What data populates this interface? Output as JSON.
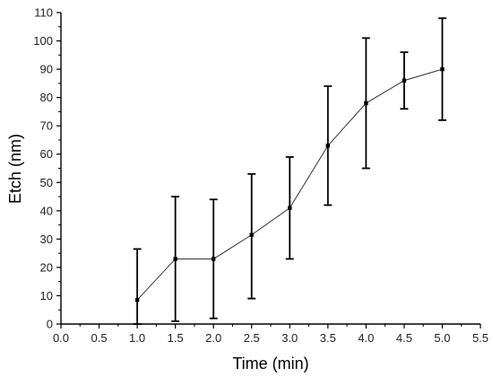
{
  "chart_data": {
    "type": "line",
    "title": "",
    "xlabel": "Time (min)",
    "ylabel": "Etch (nm)",
    "xlim": [
      0.0,
      5.5
    ],
    "ylim": [
      0,
      110
    ],
    "xticks": [
      "0.0",
      "0.5",
      "1.0",
      "1.5",
      "2.0",
      "2.5",
      "3.0",
      "3.5",
      "4.0",
      "4.5",
      "5.0",
      "5.5"
    ],
    "yticks": [
      "0",
      "10",
      "20",
      "30",
      "40",
      "50",
      "60",
      "70",
      "80",
      "90",
      "100",
      "110"
    ],
    "grid": false,
    "legend": "none",
    "series": [
      {
        "x": [
          1.0,
          1.5,
          2.0,
          2.5,
          3.0,
          3.5,
          4.0,
          4.5,
          5.0
        ],
        "y": [
          8.5,
          23,
          23,
          31.5,
          41,
          63,
          78,
          86,
          90
        ],
        "err_low": [
          0,
          1,
          2,
          9,
          23,
          42,
          55,
          76,
          72
        ],
        "err_high": [
          26.5,
          45,
          44,
          53,
          59,
          84,
          101,
          96,
          108
        ]
      }
    ],
    "colors": {
      "line": "#333333",
      "marker": "#000000",
      "axis": "#000000"
    }
  }
}
